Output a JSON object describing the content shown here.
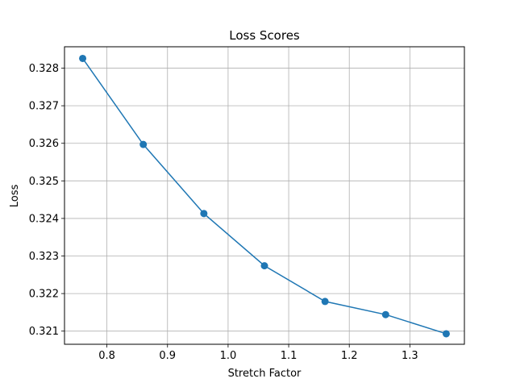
{
  "chart_data": {
    "type": "line",
    "title": "Loss Scores",
    "xlabel": "Stretch Factor",
    "ylabel": "Loss",
    "xlim": [
      0.73,
      1.39
    ],
    "ylim": [
      0.32065,
      0.32857
    ],
    "xticks": [
      "0.8",
      "0.9",
      "1.0",
      "1.1",
      "1.2",
      "1.3"
    ],
    "yticks": [
      "0.321",
      "0.322",
      "0.323",
      "0.324",
      "0.325",
      "0.326",
      "0.327",
      "0.328"
    ],
    "grid": true,
    "series": [
      {
        "color": "#1f77b4",
        "marker": "circle",
        "x": [
          0.76,
          0.86,
          0.96,
          1.06,
          1.16,
          1.26,
          1.36
        ],
        "y": [
          0.32826,
          0.32597,
          0.32413,
          0.32274,
          0.32179,
          0.32144,
          0.32093
        ]
      }
    ]
  }
}
